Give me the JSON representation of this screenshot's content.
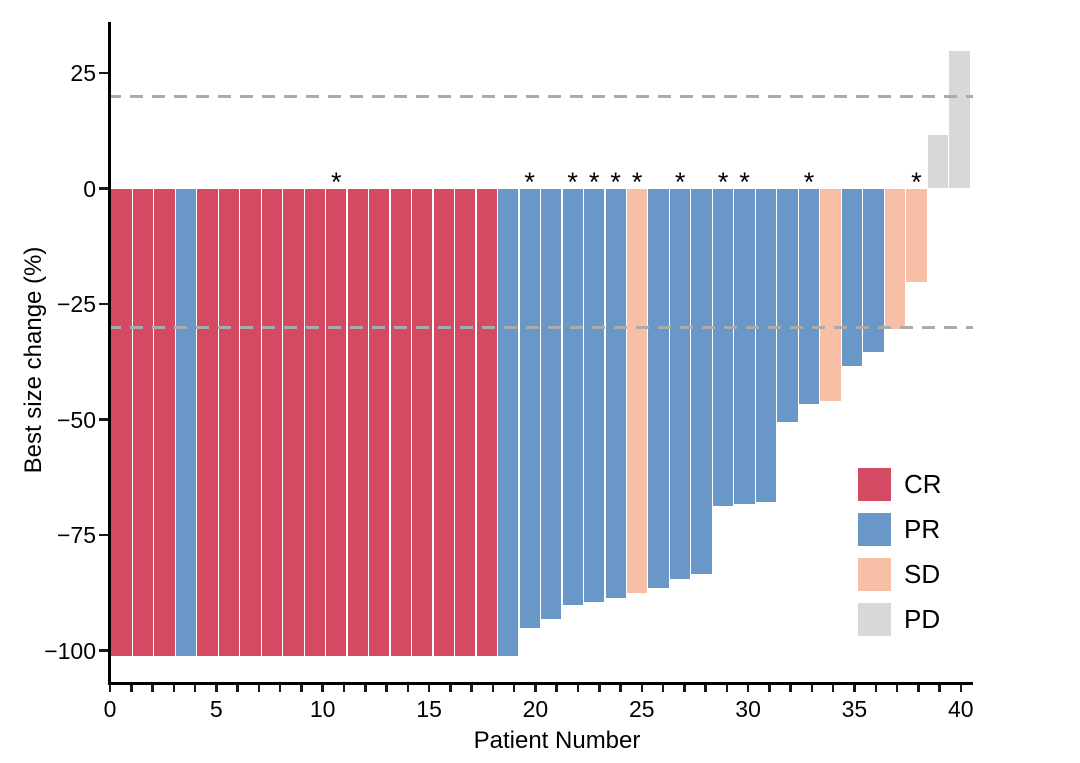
{
  "chart_data": {
    "type": "bar",
    "variant": "waterfall",
    "title": "",
    "xlabel": "Patient Number",
    "ylabel": "Best size change (%)",
    "x_range": [
      0,
      40
    ],
    "x_labeled_ticks": [
      0,
      5,
      10,
      15,
      20,
      25,
      30,
      35,
      40
    ],
    "x_minor_tick_every": 1,
    "y_ticks": [
      25,
      0,
      -25,
      -50,
      -75,
      -100
    ],
    "y_tick_labels": [
      "25",
      "0",
      "−25",
      "−50",
      "−75",
      "−100"
    ],
    "ylim": [
      -106.5,
      36.5
    ],
    "grid": false,
    "reference_lines": {
      "upper": 20,
      "lower": -30,
      "style": "dashed",
      "color": "#ABABAB"
    },
    "annotation_symbol": "*",
    "legend": {
      "position": "right-lower",
      "entries": [
        {
          "label": "CR",
          "color": "#D54A63"
        },
        {
          "label": "PR",
          "color": "#6998C8"
        },
        {
          "label": "SD",
          "color": "#F7C0A6"
        },
        {
          "label": "PD",
          "color": "#D8D8D8"
        }
      ]
    },
    "patients": [
      {
        "n": 1,
        "change": -100,
        "response": "CR",
        "flag": false
      },
      {
        "n": 2,
        "change": -100,
        "response": "CR",
        "flag": false
      },
      {
        "n": 3,
        "change": -100,
        "response": "CR",
        "flag": false
      },
      {
        "n": 4,
        "change": -100,
        "response": "PR",
        "flag": false
      },
      {
        "n": 5,
        "change": -100,
        "response": "CR",
        "flag": false
      },
      {
        "n": 6,
        "change": -100,
        "response": "CR",
        "flag": false
      },
      {
        "n": 7,
        "change": -100,
        "response": "CR",
        "flag": false
      },
      {
        "n": 8,
        "change": -100,
        "response": "CR",
        "flag": false
      },
      {
        "n": 9,
        "change": -100,
        "response": "CR",
        "flag": false
      },
      {
        "n": 10,
        "change": -100,
        "response": "CR",
        "flag": false
      },
      {
        "n": 11,
        "change": -100,
        "response": "CR",
        "flag": true
      },
      {
        "n": 12,
        "change": -100,
        "response": "CR",
        "flag": false
      },
      {
        "n": 13,
        "change": -100,
        "response": "CR",
        "flag": false
      },
      {
        "n": 14,
        "change": -100,
        "response": "CR",
        "flag": false
      },
      {
        "n": 15,
        "change": -100,
        "response": "CR",
        "flag": false
      },
      {
        "n": 16,
        "change": -100,
        "response": "CR",
        "flag": false
      },
      {
        "n": 17,
        "change": -100,
        "response": "CR",
        "flag": false
      },
      {
        "n": 18,
        "change": -100,
        "response": "CR",
        "flag": false
      },
      {
        "n": 19,
        "change": -100,
        "response": "PR",
        "flag": false
      },
      {
        "n": 20,
        "change": -94,
        "response": "PR",
        "flag": true
      },
      {
        "n": 21,
        "change": -92,
        "response": "PR",
        "flag": false
      },
      {
        "n": 22,
        "change": -89,
        "response": "PR",
        "flag": true
      },
      {
        "n": 23,
        "change": -88.5,
        "response": "PR",
        "flag": true
      },
      {
        "n": 24,
        "change": -87.5,
        "response": "PR",
        "flag": true
      },
      {
        "n": 25,
        "change": -86.5,
        "response": "SD",
        "flag": true
      },
      {
        "n": 26,
        "change": -85.5,
        "response": "PR",
        "flag": false
      },
      {
        "n": 27,
        "change": -83.5,
        "response": "PR",
        "flag": true
      },
      {
        "n": 28,
        "change": -82.5,
        "response": "PR",
        "flag": false
      },
      {
        "n": 29,
        "change": -68,
        "response": "PR",
        "flag": true
      },
      {
        "n": 30,
        "change": -67.5,
        "response": "PR",
        "flag": true
      },
      {
        "n": 31,
        "change": -67,
        "response": "PR",
        "flag": false
      },
      {
        "n": 32,
        "change": -50,
        "response": "PR",
        "flag": false
      },
      {
        "n": 33,
        "change": -46,
        "response": "PR",
        "flag": true
      },
      {
        "n": 34,
        "change": -45.5,
        "response": "SD",
        "flag": false
      },
      {
        "n": 35,
        "change": -38,
        "response": "PR",
        "flag": false
      },
      {
        "n": 36,
        "change": -35,
        "response": "PR",
        "flag": false
      },
      {
        "n": 37,
        "change": -30,
        "response": "SD",
        "flag": false
      },
      {
        "n": 38,
        "change": -20,
        "response": "SD",
        "flag": true
      },
      {
        "n": 39,
        "change": 11.5,
        "response": "PD",
        "flag": false
      },
      {
        "n": 40,
        "change": 29.5,
        "response": "PD",
        "flag": false
      }
    ]
  }
}
